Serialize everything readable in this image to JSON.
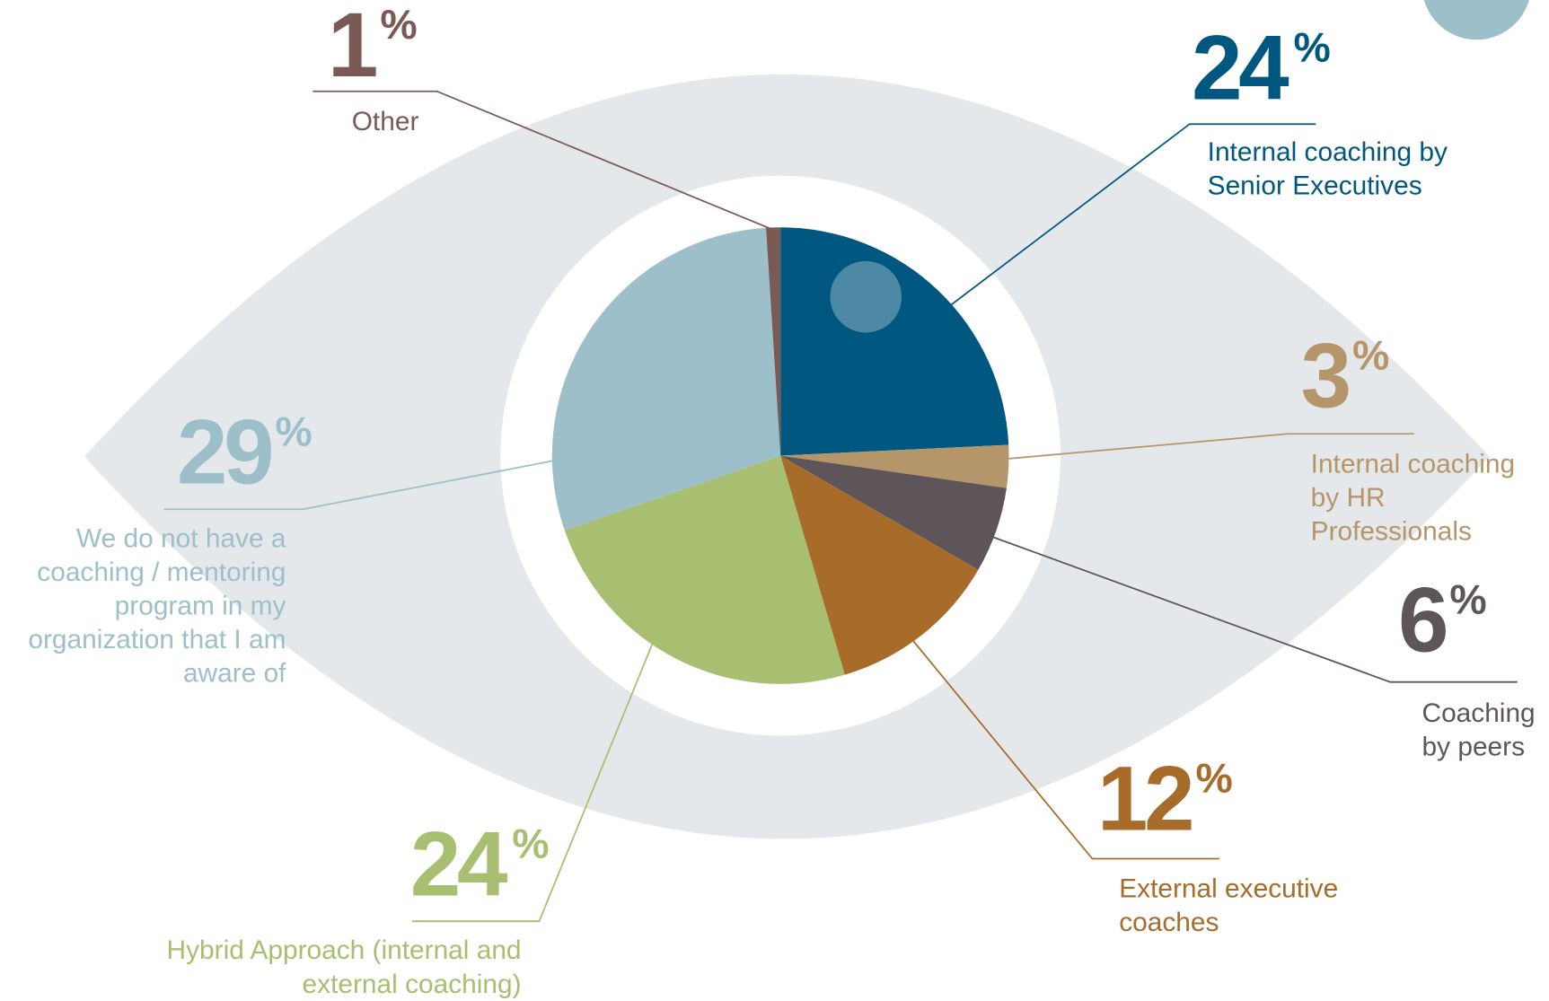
{
  "chart_data": {
    "type": "pie",
    "categories": [
      "Internal coaching by Senior Executives",
      "Internal coaching by HR Professionals",
      "Coaching by peers",
      "External executive coaches",
      "Hybrid Approach (internal and external coaching)",
      "We do not have a coaching / mentoring program in my organization that I am aware of",
      "Other"
    ],
    "values": [
      24,
      3,
      6,
      12,
      24,
      29,
      1
    ],
    "unit": "%",
    "colors": [
      "#00577f",
      "#b5956a",
      "#5e555a",
      "#a86c2a",
      "#a8bf72",
      "#9dbfca",
      "#7a5a55"
    ]
  }
}
